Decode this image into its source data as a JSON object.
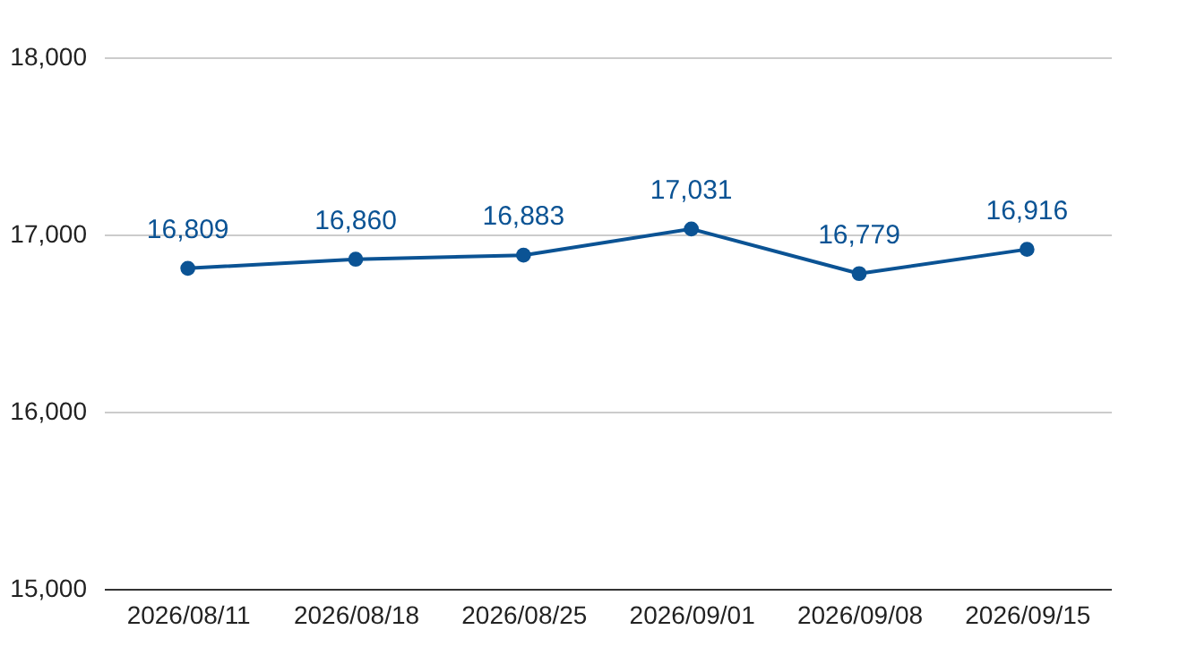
{
  "chart_data": {
    "type": "line",
    "categories": [
      "2026/08/11",
      "2026/08/18",
      "2026/08/25",
      "2026/09/01",
      "2026/09/08",
      "2026/09/15"
    ],
    "series": [
      {
        "color": "#0b5394",
        "values": [
          16809,
          16860,
          16883,
          17031,
          16779,
          16916
        ],
        "value_labels": [
          "16,809",
          "16,860",
          "16,883",
          "17,031",
          "16,779",
          "16,916"
        ]
      }
    ],
    "ylim": [
      15000,
      18000
    ],
    "yticks": [
      {
        "value": 15000,
        "label": "15,000"
      },
      {
        "value": 16000,
        "label": "16,000"
      },
      {
        "value": 17000,
        "label": "17,000"
      },
      {
        "value": 18000,
        "label": "18,000"
      }
    ],
    "grid": "y",
    "marker": "circle",
    "line_style": "solid"
  }
}
